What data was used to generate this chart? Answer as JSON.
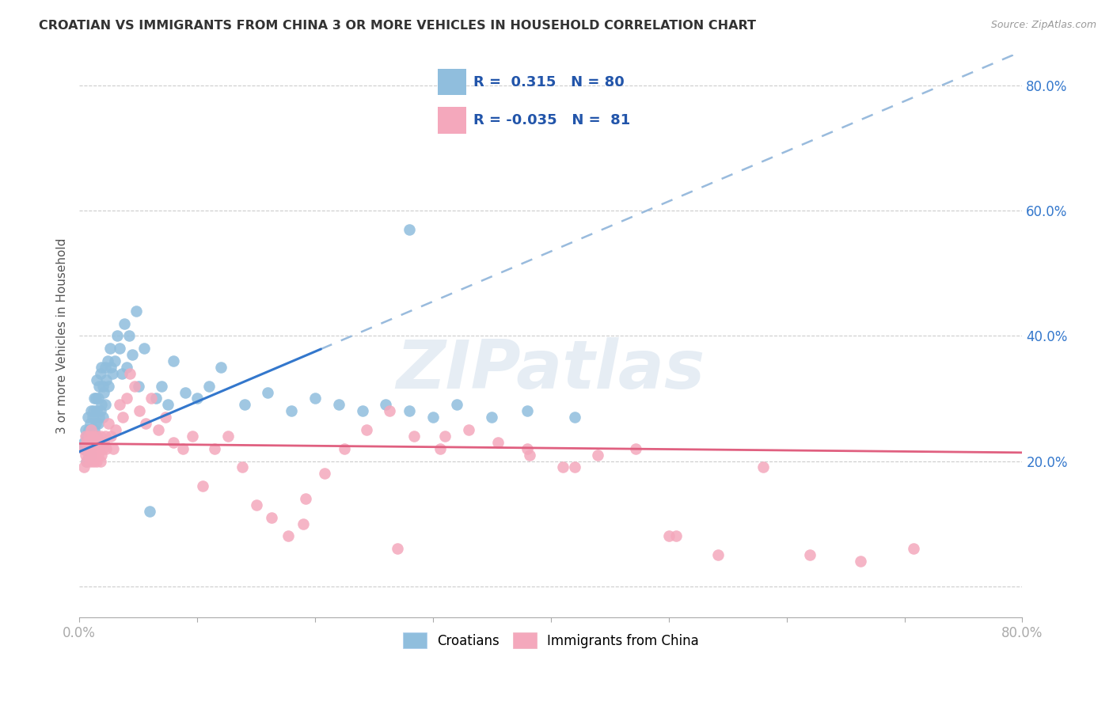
{
  "title": "CROATIAN VS IMMIGRANTS FROM CHINA 3 OR MORE VEHICLES IN HOUSEHOLD CORRELATION CHART",
  "source": "Source: ZipAtlas.com",
  "ylabel": "3 or more Vehicles in Household",
  "xlim": [
    0.0,
    0.8
  ],
  "ylim": [
    -0.05,
    0.85
  ],
  "ytick_vals": [
    0.0,
    0.2,
    0.4,
    0.6,
    0.8
  ],
  "ytick_labels": [
    "",
    "20.0%",
    "40.0%",
    "60.0%",
    "80.0%"
  ],
  "xtick_vals": [
    0.0,
    0.1,
    0.2,
    0.3,
    0.4,
    0.5,
    0.6,
    0.7,
    0.8
  ],
  "xtick_labels": [
    "0.0%",
    "",
    "",
    "",
    "",
    "",
    "",
    "",
    "80.0%"
  ],
  "R_croatian": 0.315,
  "N_croatian": 80,
  "R_china": -0.035,
  "N_china": 81,
  "color_croatian": "#90bedd",
  "color_china": "#f4a8bc",
  "color_trendline_croatian": "#3377cc",
  "color_trendline_china": "#e06080",
  "color_trendline_dashed": "#99bbdd",
  "watermark": "ZIPatlas",
  "legend_label_croatian": "Croatians",
  "legend_label_china": "Immigrants from China",
  "croatian_x": [
    0.003,
    0.004,
    0.005,
    0.005,
    0.006,
    0.006,
    0.007,
    0.007,
    0.008,
    0.008,
    0.009,
    0.009,
    0.009,
    0.01,
    0.01,
    0.01,
    0.011,
    0.011,
    0.012,
    0.012,
    0.013,
    0.013,
    0.014,
    0.014,
    0.015,
    0.015,
    0.015,
    0.016,
    0.016,
    0.017,
    0.017,
    0.018,
    0.018,
    0.019,
    0.019,
    0.02,
    0.02,
    0.021,
    0.022,
    0.022,
    0.023,
    0.024,
    0.025,
    0.026,
    0.027,
    0.028,
    0.03,
    0.032,
    0.034,
    0.036,
    0.038,
    0.04,
    0.042,
    0.045,
    0.048,
    0.05,
    0.055,
    0.06,
    0.065,
    0.07,
    0.075,
    0.08,
    0.09,
    0.1,
    0.11,
    0.12,
    0.14,
    0.16,
    0.18,
    0.2,
    0.22,
    0.24,
    0.26,
    0.28,
    0.3,
    0.32,
    0.35,
    0.38,
    0.42,
    0.28
  ],
  "croatian_y": [
    0.22,
    0.23,
    0.22,
    0.25,
    0.2,
    0.24,
    0.23,
    0.27,
    0.21,
    0.25,
    0.22,
    0.26,
    0.24,
    0.21,
    0.25,
    0.28,
    0.23,
    0.27,
    0.24,
    0.28,
    0.25,
    0.3,
    0.26,
    0.3,
    0.24,
    0.28,
    0.33,
    0.26,
    0.3,
    0.27,
    0.32,
    0.28,
    0.34,
    0.29,
    0.35,
    0.27,
    0.32,
    0.31,
    0.29,
    0.35,
    0.33,
    0.36,
    0.32,
    0.38,
    0.35,
    0.34,
    0.36,
    0.4,
    0.38,
    0.34,
    0.42,
    0.35,
    0.4,
    0.37,
    0.44,
    0.32,
    0.38,
    0.12,
    0.3,
    0.32,
    0.29,
    0.36,
    0.31,
    0.3,
    0.32,
    0.35,
    0.29,
    0.31,
    0.28,
    0.3,
    0.29,
    0.28,
    0.29,
    0.28,
    0.27,
    0.29,
    0.27,
    0.28,
    0.27,
    0.57
  ],
  "china_x": [
    0.003,
    0.004,
    0.005,
    0.005,
    0.006,
    0.006,
    0.007,
    0.008,
    0.008,
    0.009,
    0.009,
    0.01,
    0.01,
    0.011,
    0.011,
    0.012,
    0.012,
    0.013,
    0.013,
    0.014,
    0.015,
    0.015,
    0.016,
    0.016,
    0.017,
    0.018,
    0.018,
    0.019,
    0.02,
    0.021,
    0.022,
    0.023,
    0.025,
    0.027,
    0.029,
    0.031,
    0.034,
    0.037,
    0.04,
    0.043,
    0.047,
    0.051,
    0.056,
    0.061,
    0.067,
    0.073,
    0.08,
    0.088,
    0.096,
    0.105,
    0.115,
    0.126,
    0.138,
    0.15,
    0.163,
    0.177,
    0.192,
    0.208,
    0.225,
    0.244,
    0.263,
    0.284,
    0.306,
    0.33,
    0.355,
    0.382,
    0.41,
    0.44,
    0.472,
    0.506,
    0.542,
    0.58,
    0.62,
    0.663,
    0.708,
    0.5,
    0.38,
    0.42,
    0.31,
    0.27,
    0.19
  ],
  "china_y": [
    0.22,
    0.19,
    0.21,
    0.24,
    0.2,
    0.23,
    0.22,
    0.21,
    0.24,
    0.2,
    0.23,
    0.22,
    0.25,
    0.21,
    0.24,
    0.22,
    0.2,
    0.23,
    0.21,
    0.22,
    0.2,
    0.24,
    0.21,
    0.23,
    0.22,
    0.2,
    0.24,
    0.21,
    0.22,
    0.23,
    0.24,
    0.22,
    0.26,
    0.24,
    0.22,
    0.25,
    0.29,
    0.27,
    0.3,
    0.34,
    0.32,
    0.28,
    0.26,
    0.3,
    0.25,
    0.27,
    0.23,
    0.22,
    0.24,
    0.16,
    0.22,
    0.24,
    0.19,
    0.13,
    0.11,
    0.08,
    0.14,
    0.18,
    0.22,
    0.25,
    0.28,
    0.24,
    0.22,
    0.25,
    0.23,
    0.21,
    0.19,
    0.21,
    0.22,
    0.08,
    0.05,
    0.19,
    0.05,
    0.04,
    0.06,
    0.08,
    0.22,
    0.19,
    0.24,
    0.06,
    0.1
  ],
  "trendline_solid_x_start": 0.0,
  "trendline_solid_x_end": 0.205,
  "trendline_dashed_x_start": 0.205,
  "trendline_dashed_x_end": 0.8,
  "trendline_slope_cr": 0.8,
  "trendline_intercept_cr": 0.215,
  "trendline_slope_ch": -0.018,
  "trendline_intercept_ch": 0.228
}
